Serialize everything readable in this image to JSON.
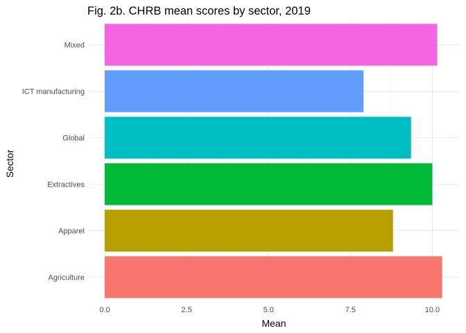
{
  "chart_data": {
    "type": "bar",
    "orientation": "horizontal",
    "title": "Fig. 2b. CHRB mean scores by sector, 2019",
    "xlabel": "Mean",
    "ylabel": "Sector",
    "categories": [
      "Agriculture",
      "Apparel",
      "Extractives",
      "Global",
      "ICT manufacturing",
      "Mixed"
    ],
    "values": [
      10.3,
      8.8,
      10.0,
      9.35,
      7.9,
      10.15
    ],
    "colors": [
      "#F8766D",
      "#B79F00",
      "#00BA38",
      "#00BFC4",
      "#619CFF",
      "#F564E3"
    ],
    "xlim": [
      0,
      10.35
    ],
    "x_ticks": [
      0,
      2.5,
      5,
      7.5,
      10
    ],
    "x_tick_labels": [
      "0.0",
      "2.5",
      "5.0",
      "7.5",
      "10.0"
    ],
    "grid": true,
    "legend": "none"
  }
}
